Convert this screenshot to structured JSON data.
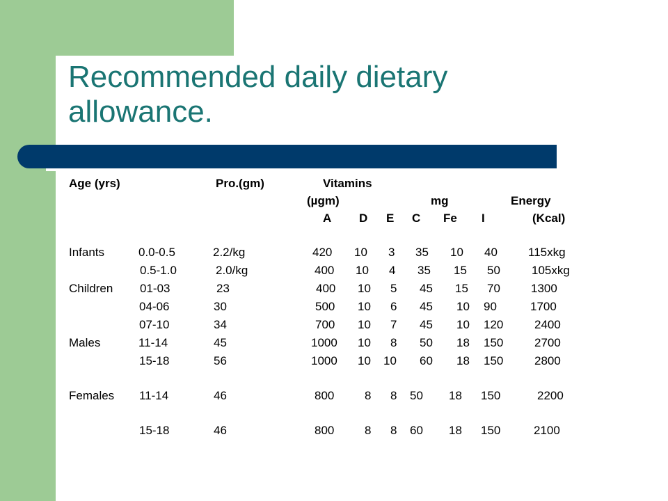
{
  "title": "Recommended daily dietary allowance.",
  "header": {
    "age": "Age (yrs)",
    "protein": "Pro.(gm)",
    "vitamins": "Vitamins",
    "micrograms": "(µgm)",
    "mg": "mg",
    "energy": "Energy",
    "vit_a": "A",
    "vit_d": "D",
    "vit_e": "E",
    "vit_c": "C",
    "iron": "Fe",
    "iodine": "I",
    "kcal": "(Kcal)"
  },
  "rows": [
    {
      "group": "Infants",
      "age": "0.0-0.5",
      "protein": "2.2/kg",
      "a": "420",
      "d": "10",
      "e": "3",
      "c": "35",
      "fe": "10",
      "i": "40",
      "energy": "115xkg"
    },
    {
      "group": "",
      "age": "0.5-1.0",
      "protein": "2.0/kg",
      "a": "400",
      "d": "10",
      "e": "4",
      "c": "35",
      "fe": "15",
      "i": "50",
      "energy": "105xkg"
    },
    {
      "group": "Children",
      "age": "01-03",
      "protein": "23",
      "a": "400",
      "d": "10",
      "e": "5",
      "c": "45",
      "fe": "15",
      "i": "70",
      "energy": "1300"
    },
    {
      "group": "",
      "age": "04-06",
      "protein": "30",
      "a": "500",
      "d": "10",
      "e": "6",
      "c": "45",
      "fe": "10",
      "i": "90",
      "energy": "1700"
    },
    {
      "group": "",
      "age": "07-10",
      "protein": "34",
      "a": "700",
      "d": "10",
      "e": "7",
      "c": "45",
      "fe": "10",
      "i": "120",
      "energy": "2400"
    },
    {
      "group": "Males",
      "age": "11-14",
      "protein": "45",
      "a": "1000",
      "d": "10",
      "e": "8",
      "c": "50",
      "fe": "18",
      "i": "150",
      "energy": "2700"
    },
    {
      "group": "",
      "age": "15-18",
      "protein": "56",
      "a": "1000",
      "d": "10",
      "e": "10",
      "c": "60",
      "fe": "18",
      "i": "150",
      "energy": "2800"
    },
    {
      "group": "Females",
      "age": "11-14",
      "protein": "46",
      "a": "800",
      "d": "8",
      "e": "8",
      "c": "50",
      "fe": "18",
      "i": "150",
      "energy": "2200"
    },
    {
      "group": "",
      "age": "15-18",
      "protein": "46",
      "a": "800",
      "d": "8",
      "e": "8",
      "c": "60",
      "fe": "18",
      "i": "150",
      "energy": "2100"
    }
  ]
}
